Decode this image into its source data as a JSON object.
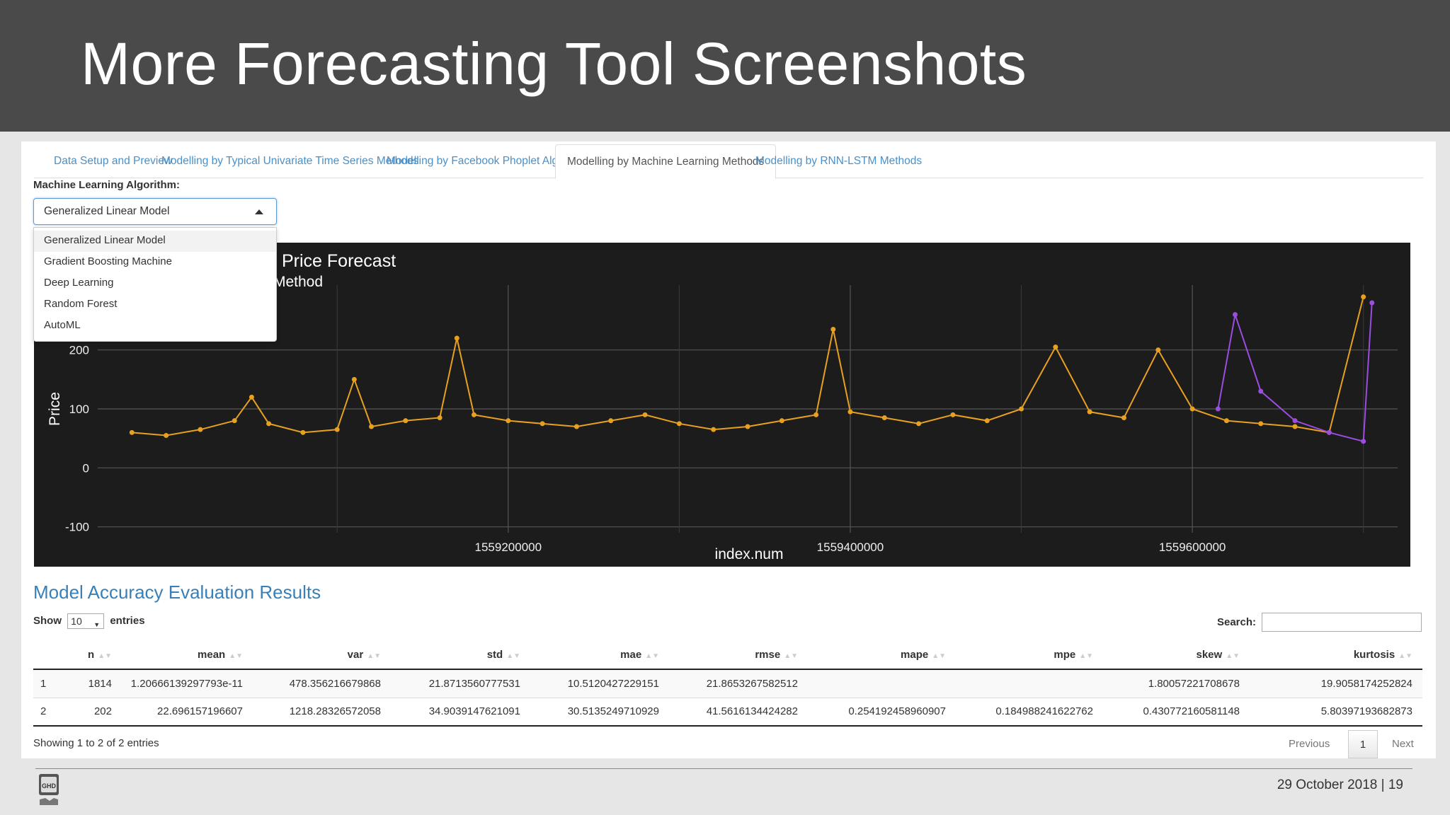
{
  "slide": {
    "title": "More Forecasting Tool Screenshots",
    "footer": "29 October 2018 | 19",
    "logo_text": "GHD"
  },
  "tabs": [
    {
      "label": "Data Setup and Preview",
      "active": false
    },
    {
      "label": "Modelling by Typical Univariate Time Series Methods",
      "active": false
    },
    {
      "label": "Modelling by Facebook Phoplet Algorithm",
      "active": false
    },
    {
      "label": "Modelling by Machine Learning Methods",
      "active": true
    },
    {
      "label": "Modelling by RNN-LSTM Methods",
      "active": false
    }
  ],
  "algorithm": {
    "label": "Machine Learning Algorithm:",
    "selected": "Generalized Linear Model",
    "options": [
      "Generalized Linear Model",
      "Gradient Boosting Machine",
      "Deep Learning",
      "Random Forest",
      "AutoML"
    ]
  },
  "chart_data": {
    "type": "line",
    "title": "Price Forecast",
    "subtitle": "Method",
    "xlabel": "index.num",
    "ylabel": "Price",
    "xlim": [
      1558960000,
      1559720000
    ],
    "ylim": [
      -110,
      310
    ],
    "x_ticks": [
      1559200000,
      1559400000,
      1559600000
    ],
    "x_tick_labels": [
      "1559200000",
      "1559400000",
      "1559600000"
    ],
    "y_ticks": [
      -100,
      0,
      100,
      200
    ],
    "y_tick_labels": [
      "-100",
      "0",
      "100",
      "200"
    ],
    "grid": true,
    "background": "#1c1c1c",
    "series_colors": {
      "actual": "#e8a020",
      "forecast": "#9b4de0",
      "fitted": "#ffffff"
    },
    "series": [
      {
        "x": [
          1558980000,
          1559000000,
          1559020000,
          1559040000,
          1559050000,
          1559060000,
          1559080000,
          1559100000,
          1559110000,
          1559120000,
          1559140000,
          1559160000,
          1559170000,
          1559180000,
          1559200000,
          1559220000,
          1559240000,
          1559260000,
          1559280000,
          1559300000,
          1559320000,
          1559340000,
          1559360000,
          1559380000,
          1559390000,
          1559400000,
          1559420000,
          1559440000,
          1559460000,
          1559480000,
          1559500000,
          1559520000,
          1559540000,
          1559560000,
          1559580000,
          1559600000,
          1559620000,
          1559640000,
          1559660000,
          1559680000,
          1559700000
        ],
        "values": [
          60,
          55,
          65,
          80,
          120,
          75,
          60,
          65,
          150,
          70,
          80,
          85,
          220,
          90,
          80,
          75,
          70,
          80,
          90,
          75,
          65,
          70,
          80,
          90,
          235,
          95,
          85,
          75,
          90,
          80,
          100,
          205,
          95,
          85,
          200,
          100,
          80,
          75,
          70,
          60,
          290
        ]
      },
      {
        "x": [
          1559615000,
          1559625000,
          1559640000,
          1559660000,
          1559680000,
          1559700000,
          1559705000
        ],
        "values": [
          100,
          260,
          130,
          80,
          60,
          45,
          280
        ]
      }
    ]
  },
  "accuracy": {
    "title": "Model Accuracy Evaluation Results",
    "show_label": "Show",
    "entries_label": "entries",
    "page_length": "10",
    "search_label": "Search:",
    "columns": [
      "",
      "n",
      "mean",
      "var",
      "std",
      "mae",
      "rmse",
      "mape",
      "mpe",
      "skew",
      "kurtosis"
    ],
    "rows": [
      [
        "1",
        "1814",
        "1.20666139297793e-11",
        "478.356216679868",
        "21.8713560777531",
        "10.5120427229151",
        "21.8653267582512",
        "",
        "",
        "1.80057221708678",
        "19.9058174252824"
      ],
      [
        "2",
        "202",
        "22.696157196607",
        "1218.28326572058",
        "34.9039147621091",
        "30.5135249710929",
        "41.5616134424282",
        "0.254192458960907",
        "0.184988241622762",
        "0.430772160581148",
        "5.80397193682873"
      ]
    ],
    "info": "Showing 1 to 2 of 2 entries",
    "pager": {
      "previous": "Previous",
      "current": "1",
      "next": "Next"
    }
  }
}
